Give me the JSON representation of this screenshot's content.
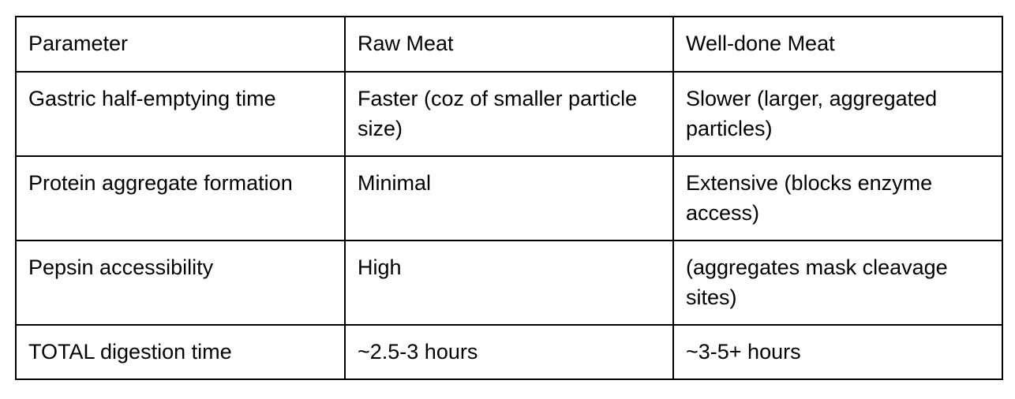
{
  "table": {
    "headers": [
      "Parameter",
      "Raw Meat",
      "Well-done Meat"
    ],
    "rows": [
      [
        "Gastric half-emptying time",
        "Faster (coz of smaller particle size)",
        "Slower (larger, aggregated particles)"
      ],
      [
        "Protein aggregate formation",
        "Minimal",
        "Extensive (blocks enzyme access)"
      ],
      [
        "Pepsin accessibility",
        "High",
        "(aggregates mask cleavage sites)"
      ],
      [
        "TOTAL digestion time",
        "~2.5-3 hours",
        "~3-5+ hours"
      ]
    ]
  }
}
